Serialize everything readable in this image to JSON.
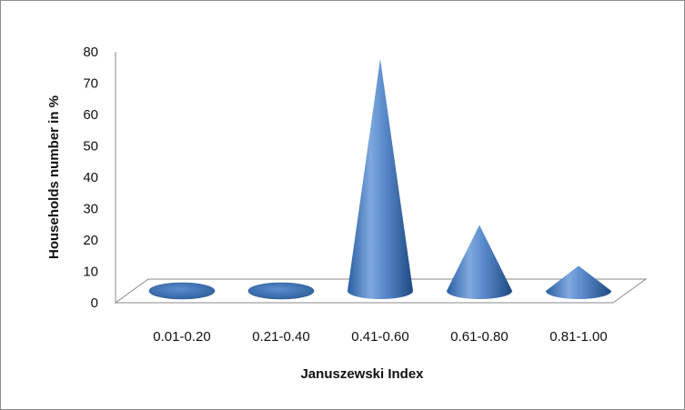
{
  "chart_data": {
    "type": "bar",
    "bar_shape": "3d-cone",
    "categories": [
      "0.01-0.20",
      "0.21-0.40",
      "0.41-0.60",
      "0.61-0.80",
      "0.81-1.00"
    ],
    "values": [
      0.5,
      0.5,
      74,
      21,
      8
    ],
    "xlabel": "Januszewski Index",
    "ylabel": "Households number in %",
    "ylim": [
      0,
      80
    ],
    "yticks": [
      "0",
      "10",
      "20",
      "30",
      "40",
      "50",
      "60",
      "70",
      "80"
    ],
    "grid": false,
    "legend": "none",
    "colors": {
      "cone": "#4f81bd",
      "cone_dark": "#1f4e85",
      "cone_light": "#95b8e6",
      "floor_line": "#8a8a8a"
    }
  }
}
